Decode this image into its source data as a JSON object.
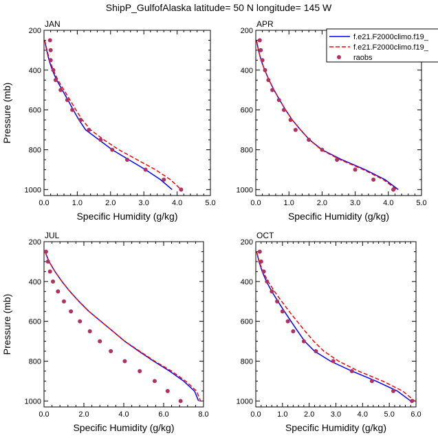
{
  "title": "ShipP_GulfofAlaska  latitude= 50 N longitude= 145 W",
  "legend": {
    "entries": [
      {
        "label": "f.e21.F2000climo.f19_",
        "color": "#0000ff",
        "style": "solid"
      },
      {
        "label": "f.e21.F2000climo.f19_",
        "color": "#ff0000",
        "style": "dashed"
      },
      {
        "label": "raobs",
        "color": "#b03060",
        "style": "dot"
      }
    ]
  },
  "chart_data": [
    {
      "type": "line",
      "panel": "JAN",
      "xlabel": "Specific Humidity (g/kg)",
      "ylabel": "Pressure (mb)",
      "xlim": [
        0,
        5
      ],
      "ylim": [
        200,
        1030
      ],
      "xticks": [
        "0.0",
        "1.0",
        "2.0",
        "3.0",
        "4.0",
        "5.0"
      ],
      "yticks": [
        "200",
        "400",
        "600",
        "800",
        "1000"
      ],
      "series": [
        {
          "color": "#0000ff",
          "points": [
            [
              0.02,
              250
            ],
            [
              0.08,
              300
            ],
            [
              0.15,
              350
            ],
            [
              0.25,
              400
            ],
            [
              0.38,
              450
            ],
            [
              0.55,
              500
            ],
            [
              0.72,
              550
            ],
            [
              0.88,
              600
            ],
            [
              1.05,
              650
            ],
            [
              1.25,
              700
            ],
            [
              1.65,
              750
            ],
            [
              2.05,
              800
            ],
            [
              2.55,
              850
            ],
            [
              3.05,
              900
            ],
            [
              3.5,
              950
            ],
            [
              3.85,
              1000
            ]
          ]
        },
        {
          "color": "#ff0000",
          "points": [
            [
              0.02,
              250
            ],
            [
              0.09,
              300
            ],
            [
              0.17,
              350
            ],
            [
              0.28,
              400
            ],
            [
              0.42,
              450
            ],
            [
              0.6,
              500
            ],
            [
              0.78,
              550
            ],
            [
              0.96,
              600
            ],
            [
              1.15,
              650
            ],
            [
              1.4,
              700
            ],
            [
              1.8,
              750
            ],
            [
              2.25,
              800
            ],
            [
              2.8,
              850
            ],
            [
              3.35,
              900
            ],
            [
              3.8,
              950
            ],
            [
              4.12,
              1000
            ]
          ]
        }
      ],
      "raobs": [
        [
          0.18,
          250
        ],
        [
          0.2,
          300
        ],
        [
          0.2,
          350
        ],
        [
          0.28,
          400
        ],
        [
          0.35,
          450
        ],
        [
          0.5,
          500
        ],
        [
          0.7,
          550
        ],
        [
          0.85,
          600
        ],
        [
          1.1,
          650
        ],
        [
          1.35,
          700
        ],
        [
          1.7,
          750
        ],
        [
          2.05,
          800
        ],
        [
          2.5,
          850
        ],
        [
          3.05,
          900
        ],
        [
          3.6,
          950
        ],
        [
          4.12,
          1000
        ]
      ]
    },
    {
      "type": "line",
      "panel": "APR",
      "xlabel": "Specific Humidity (g/kg)",
      "ylabel": "",
      "xlim": [
        0,
        5
      ],
      "ylim": [
        200,
        1030
      ],
      "xticks": [
        "0.0",
        "1.0",
        "2.0",
        "3.0",
        "4.0",
        "5.0"
      ],
      "yticks": [
        "200",
        "400",
        "600",
        "800",
        "1000"
      ],
      "series": [
        {
          "color": "#0000ff",
          "points": [
            [
              0.02,
              250
            ],
            [
              0.08,
              300
            ],
            [
              0.16,
              350
            ],
            [
              0.27,
              400
            ],
            [
              0.4,
              450
            ],
            [
              0.55,
              500
            ],
            [
              0.72,
              550
            ],
            [
              0.9,
              600
            ],
            [
              1.1,
              650
            ],
            [
              1.35,
              700
            ],
            [
              1.62,
              750
            ],
            [
              2.0,
              800
            ],
            [
              2.6,
              850
            ],
            [
              3.3,
              900
            ],
            [
              3.9,
              950
            ],
            [
              4.3,
              1000
            ]
          ]
        },
        {
          "color": "#ff0000",
          "points": [
            [
              0.02,
              250
            ],
            [
              0.08,
              300
            ],
            [
              0.16,
              350
            ],
            [
              0.27,
              400
            ],
            [
              0.4,
              450
            ],
            [
              0.55,
              500
            ],
            [
              0.72,
              550
            ],
            [
              0.9,
              600
            ],
            [
              1.1,
              650
            ],
            [
              1.35,
              700
            ],
            [
              1.62,
              750
            ],
            [
              1.98,
              800
            ],
            [
              2.55,
              850
            ],
            [
              3.25,
              900
            ],
            [
              3.85,
              950
            ],
            [
              4.25,
              1000
            ]
          ]
        }
      ],
      "raobs": [
        [
          0.12,
          250
        ],
        [
          0.15,
          300
        ],
        [
          0.2,
          350
        ],
        [
          0.28,
          400
        ],
        [
          0.38,
          450
        ],
        [
          0.5,
          500
        ],
        [
          0.7,
          550
        ],
        [
          0.85,
          600
        ],
        [
          1.05,
          650
        ],
        [
          1.2,
          700
        ],
        [
          1.6,
          750
        ],
        [
          2.0,
          800
        ],
        [
          2.45,
          850
        ],
        [
          3.0,
          900
        ],
        [
          3.55,
          950
        ],
        [
          4.15,
          1000
        ]
      ]
    },
    {
      "type": "line",
      "panel": "JUL",
      "xlabel": "Specific Humidity (g/kg)",
      "ylabel": "Pressure (mb)",
      "xlim": [
        0,
        8
      ],
      "ylim": [
        200,
        1030
      ],
      "xticks": [
        "0.0",
        "2.0",
        "4.0",
        "6.0",
        "8.0"
      ],
      "yticks": [
        "200",
        "400",
        "600",
        "800",
        "1000"
      ],
      "series": [
        {
          "color": "#0000ff",
          "points": [
            [
              0.05,
              250
            ],
            [
              0.25,
              300
            ],
            [
              0.55,
              350
            ],
            [
              0.9,
              400
            ],
            [
              1.3,
              450
            ],
            [
              1.75,
              500
            ],
            [
              2.25,
              550
            ],
            [
              2.85,
              600
            ],
            [
              3.45,
              650
            ],
            [
              4.05,
              700
            ],
            [
              4.75,
              750
            ],
            [
              5.5,
              800
            ],
            [
              6.3,
              850
            ],
            [
              7.0,
              900
            ],
            [
              7.55,
              950
            ],
            [
              7.75,
              1000
            ]
          ]
        },
        {
          "color": "#ff0000",
          "points": [
            [
              0.05,
              250
            ],
            [
              0.25,
              300
            ],
            [
              0.55,
              350
            ],
            [
              0.9,
              400
            ],
            [
              1.3,
              450
            ],
            [
              1.75,
              500
            ],
            [
              2.25,
              550
            ],
            [
              2.85,
              600
            ],
            [
              3.45,
              650
            ],
            [
              4.05,
              700
            ],
            [
              4.8,
              750
            ],
            [
              5.55,
              800
            ],
            [
              6.4,
              850
            ],
            [
              7.1,
              900
            ],
            [
              7.65,
              950
            ],
            [
              7.85,
              1000
            ]
          ]
        }
      ],
      "raobs": [
        [
          0.1,
          250
        ],
        [
          0.2,
          300
        ],
        [
          0.3,
          350
        ],
        [
          0.45,
          400
        ],
        [
          0.7,
          450
        ],
        [
          1.0,
          500
        ],
        [
          1.35,
          550
        ],
        [
          1.8,
          600
        ],
        [
          2.3,
          650
        ],
        [
          2.8,
          700
        ],
        [
          3.35,
          750
        ],
        [
          4.05,
          800
        ],
        [
          4.8,
          850
        ],
        [
          5.55,
          900
        ],
        [
          6.2,
          950
        ],
        [
          6.85,
          1000
        ]
      ]
    },
    {
      "type": "line",
      "panel": "OCT",
      "xlabel": "Specific Humidity (g/kg)",
      "ylabel": "",
      "xlim": [
        0,
        6
      ],
      "ylim": [
        200,
        1030
      ],
      "xticks": [
        "0.0",
        "1.0",
        "2.0",
        "3.0",
        "4.0",
        "5.0",
        "6.0"
      ],
      "yticks": [
        "200",
        "400",
        "600",
        "800",
        "1000"
      ],
      "series": [
        {
          "color": "#0000ff",
          "points": [
            [
              0.03,
              250
            ],
            [
              0.12,
              300
            ],
            [
              0.24,
              350
            ],
            [
              0.4,
              400
            ],
            [
              0.6,
              450
            ],
            [
              0.83,
              500
            ],
            [
              1.07,
              550
            ],
            [
              1.32,
              600
            ],
            [
              1.57,
              650
            ],
            [
              1.83,
              700
            ],
            [
              2.2,
              750
            ],
            [
              2.8,
              800
            ],
            [
              3.6,
              850
            ],
            [
              4.5,
              900
            ],
            [
              5.3,
              950
            ],
            [
              5.8,
              1000
            ]
          ]
        },
        {
          "color": "#ff0000",
          "points": [
            [
              0.03,
              250
            ],
            [
              0.13,
              300
            ],
            [
              0.27,
              350
            ],
            [
              0.46,
              400
            ],
            [
              0.7,
              450
            ],
            [
              0.97,
              500
            ],
            [
              1.25,
              550
            ],
            [
              1.55,
              600
            ],
            [
              1.85,
              650
            ],
            [
              2.17,
              700
            ],
            [
              2.55,
              750
            ],
            [
              3.1,
              800
            ],
            [
              3.85,
              850
            ],
            [
              4.75,
              900
            ],
            [
              5.5,
              950
            ],
            [
              5.95,
              1000
            ]
          ]
        }
      ],
      "raobs": [
        [
          0.15,
          250
        ],
        [
          0.2,
          300
        ],
        [
          0.3,
          350
        ],
        [
          0.42,
          400
        ],
        [
          0.6,
          450
        ],
        [
          0.8,
          500
        ],
        [
          1.0,
          550
        ],
        [
          1.2,
          600
        ],
        [
          1.4,
          650
        ],
        [
          1.8,
          700
        ],
        [
          2.25,
          750
        ],
        [
          2.9,
          800
        ],
        [
          3.6,
          850
        ],
        [
          4.35,
          900
        ],
        [
          5.15,
          950
        ],
        [
          5.85,
          1000
        ]
      ]
    }
  ]
}
